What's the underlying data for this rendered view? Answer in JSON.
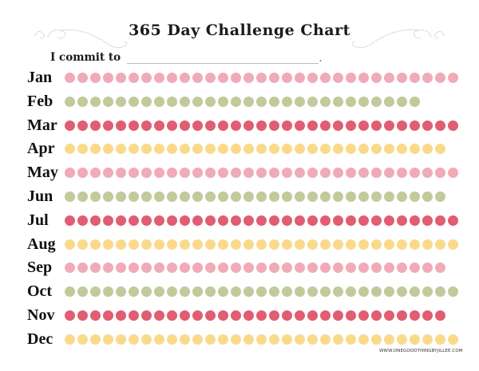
{
  "title": "365 Day Challenge Chart",
  "commit": {
    "label": "I commit to",
    "blank": "_______________________________________."
  },
  "colors": {
    "pink": "#f0abb6",
    "green": "#c3c99b",
    "red": "#e05d72",
    "yellow": "#f9da8b"
  },
  "months": [
    {
      "label": "Jan",
      "days": 31,
      "color": "pink"
    },
    {
      "label": "Feb",
      "days": 28,
      "color": "green"
    },
    {
      "label": "Mar",
      "days": 31,
      "color": "red"
    },
    {
      "label": "Apr",
      "days": 30,
      "color": "yellow"
    },
    {
      "label": "May",
      "days": 31,
      "color": "pink"
    },
    {
      "label": "Jun",
      "days": 30,
      "color": "green"
    },
    {
      "label": "Jul",
      "days": 31,
      "color": "red"
    },
    {
      "label": "Aug",
      "days": 31,
      "color": "yellow"
    },
    {
      "label": "Sep",
      "days": 30,
      "color": "pink"
    },
    {
      "label": "Oct",
      "days": 31,
      "color": "green"
    },
    {
      "label": "Nov",
      "days": 30,
      "color": "red"
    },
    {
      "label": "Dec",
      "days": 31,
      "color": "yellow"
    }
  ],
  "footer": "WWW.ONEGOODTHINGBYJILLEE.COM"
}
